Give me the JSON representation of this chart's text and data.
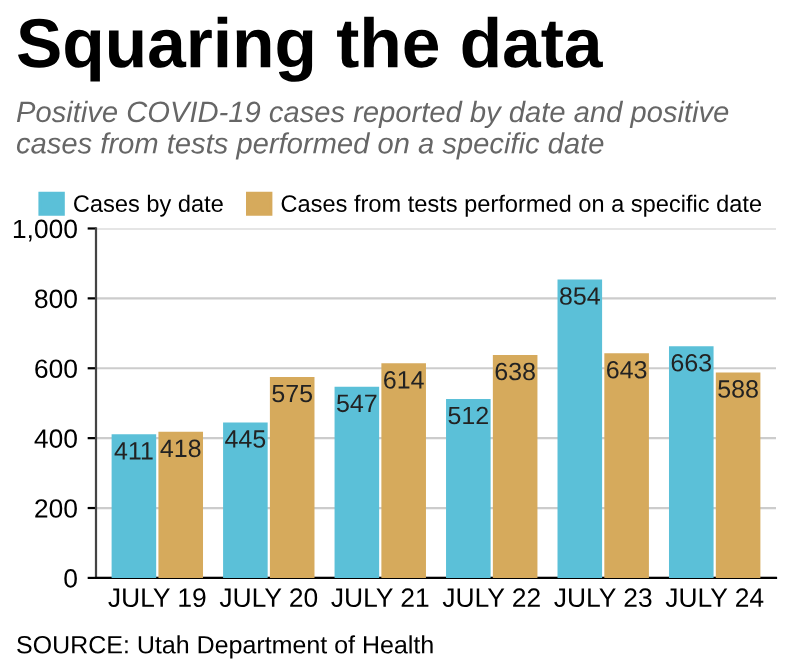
{
  "chart_data": {
    "type": "bar",
    "title": "Squaring the data",
    "subtitle": "Positive COVID-19 cases reported by date and positive cases from tests performed on a specific date",
    "categories": [
      "JULY 19",
      "JULY 20",
      "JULY 21",
      "JULY 22",
      "JULY 23",
      "JULY 24"
    ],
    "series": [
      {
        "name": "Cases by date",
        "color": "#5bc0d8",
        "values": [
          411,
          445,
          547,
          512,
          854,
          663
        ]
      },
      {
        "name": "Cases from tests performed on a specific date",
        "color": "#d6aa5c",
        "values": [
          418,
          575,
          614,
          638,
          643,
          588
        ]
      }
    ],
    "ylim": [
      0,
      1000
    ],
    "yticks": [
      0,
      200,
      400,
      600,
      800,
      {
        "value": 1000,
        "label": "1,000"
      }
    ],
    "grid": "y",
    "legend": "top",
    "data_labels": true,
    "annotations": [
      "SOURCE: Utah Department of Health"
    ]
  }
}
